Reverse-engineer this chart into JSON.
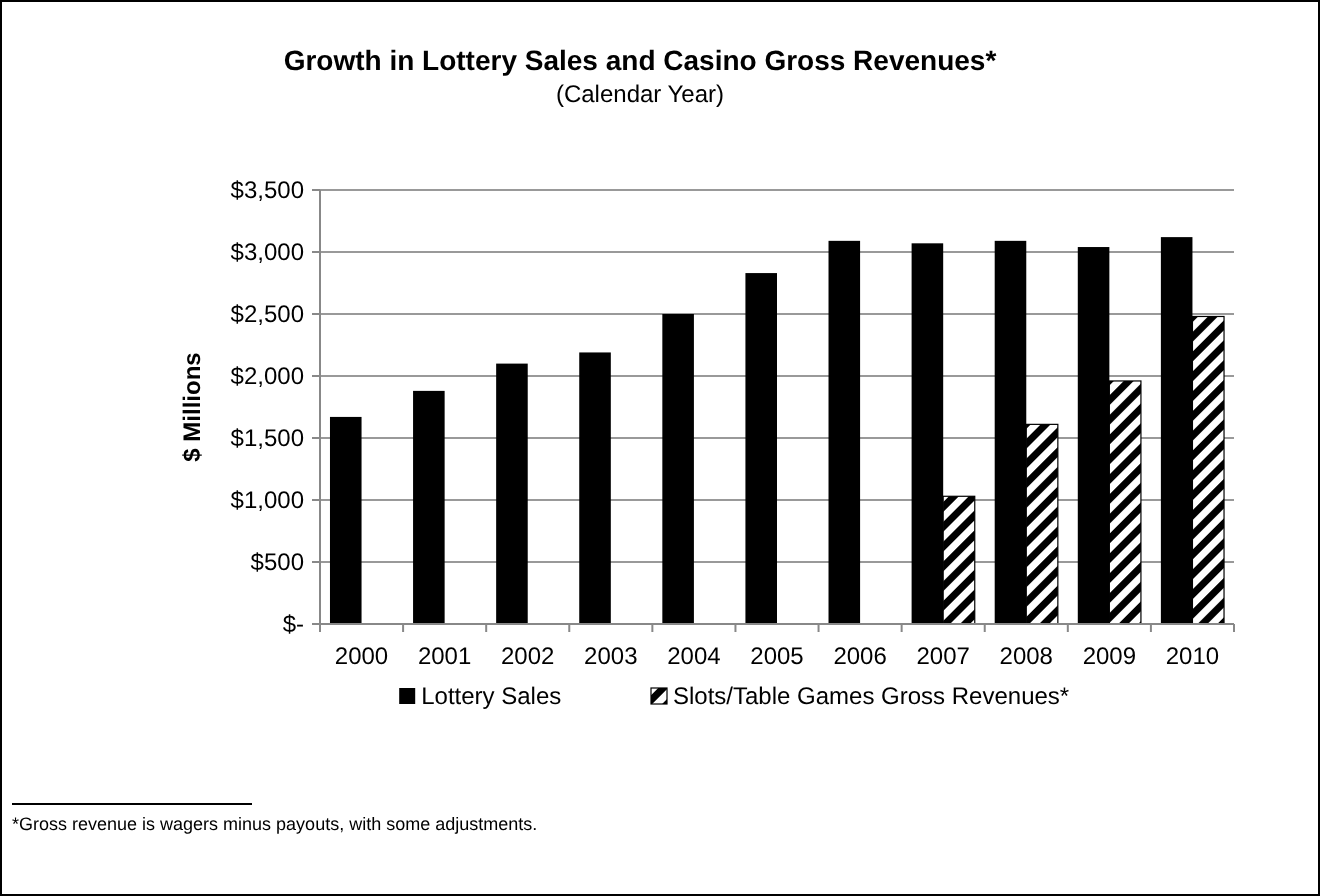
{
  "chart_data": {
    "type": "bar",
    "title": "Growth in Lottery Sales and Casino Gross Revenues*",
    "subtitle": "(Calendar Year)",
    "ylabel": "$ Millions",
    "categories": [
      "2000",
      "2001",
      "2002",
      "2003",
      "2004",
      "2005",
      "2006",
      "2007",
      "2008",
      "2009",
      "2010"
    ],
    "series": [
      {
        "name": "Lottery Sales",
        "color": "#000000",
        "values": [
          1670,
          1880,
          2100,
          2190,
          2500,
          2830,
          3090,
          3070,
          3090,
          3040,
          3120
        ]
      },
      {
        "name": "Slots/Table Games Gross Revenues*",
        "color": "#000000",
        "values": [
          null,
          null,
          null,
          null,
          null,
          null,
          null,
          1030,
          1610,
          1960,
          2480
        ]
      }
    ],
    "ylim": [
      0,
      3500
    ],
    "yticks": [
      {
        "value": 0,
        "label": "$-"
      },
      {
        "value": 500,
        "label": "$500"
      },
      {
        "value": 1000,
        "label": "$1,000"
      },
      {
        "value": 1500,
        "label": "$1,500"
      },
      {
        "value": 2000,
        "label": "$2,000"
      },
      {
        "value": 2500,
        "label": "$2,500"
      },
      {
        "value": 3000,
        "label": "$3,000"
      },
      {
        "value": 3500,
        "label": "$3,500"
      }
    ],
    "grid": "y",
    "legend": "bottom",
    "annotations": [
      "*Gross revenue is wagers minus payouts, with some adjustments."
    ]
  }
}
